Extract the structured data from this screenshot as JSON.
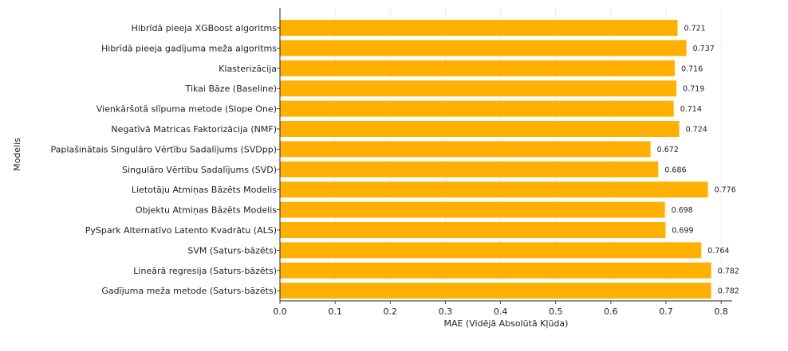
{
  "chart_data": {
    "type": "bar",
    "orientation": "horizontal",
    "categories": [
      "Hibrīdā pieeja XGBoost algoritms",
      "Hibrīdā pieeja gadījuma meža algoritms",
      "Klasterizācija",
      "Tikai Bāze (Baseline)",
      "Vienkāršotā slīpuma metode (Slope One)",
      "Negatīvā Matricas Faktorizācija (NMF)",
      "Paplašinātais Singulāro Vērtību Sadalījums (SVDpp)",
      "Singulāro Vērtību Sadalījums (SVD)",
      "Lietotāju Atmiņas Bāzēts Modelis",
      "Objektu Atmiņas Bāzēts Modelis",
      "PySpark Alternatīvo Latento Kvadrātu (ALS)",
      "SVM (Saturs-bāzēts)",
      "Lineārā regresija (Saturs-bāzēts)",
      "Gadījuma meža metode (Saturs-bāzēts)"
    ],
    "values": [
      0.721,
      0.737,
      0.716,
      0.719,
      0.714,
      0.724,
      0.672,
      0.686,
      0.776,
      0.698,
      0.699,
      0.764,
      0.782,
      0.782
    ],
    "value_labels": [
      "0.721",
      "0.737",
      "0.716",
      "0.719",
      "0.714",
      "0.724",
      "0.672",
      "0.686",
      "0.776",
      "0.698",
      "0.699",
      "0.764",
      "0.782",
      "0.782"
    ],
    "xlabel": "MAE (Vidējā Absolūtā Kļūda)",
    "ylabel": "Modelis",
    "xlim": [
      0,
      0.82
    ],
    "xticks": [
      0.0,
      0.1,
      0.2,
      0.3,
      0.4,
      0.5,
      0.6,
      0.7,
      0.8
    ],
    "xtick_labels": [
      "0.0",
      "0.1",
      "0.2",
      "0.3",
      "0.4",
      "0.5",
      "0.6",
      "0.7",
      "0.8"
    ],
    "grid": true,
    "bar_color": "#FFB000"
  }
}
